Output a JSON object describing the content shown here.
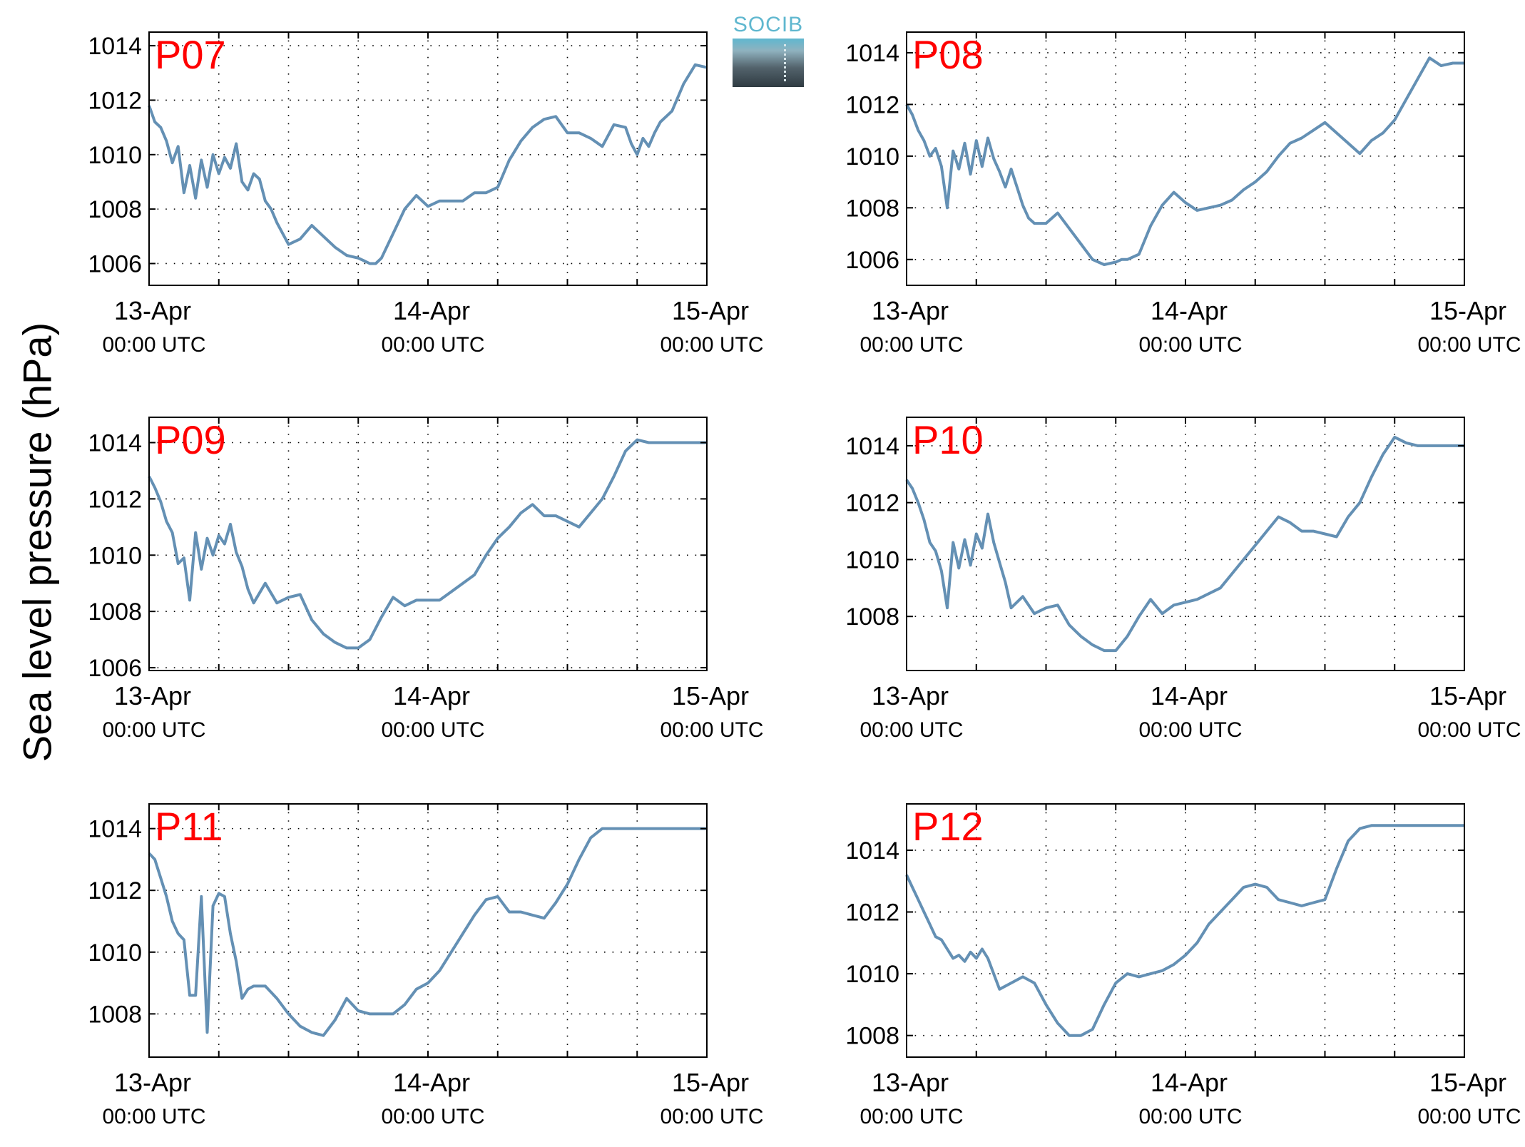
{
  "figure": {
    "ylabel": "Sea level pressure (hPa)",
    "logo_text": "SOCIB",
    "colors": {
      "line": "#6490b4",
      "panel_label": "#ff0000",
      "grid": "#000000"
    }
  },
  "chart_data": [
    {
      "type": "line",
      "title": "P07",
      "x_ticks": [
        "13-Apr",
        "14-Apr",
        "15-Apr"
      ],
      "x_subticks": [
        "00:00 UTC",
        "00:00 UTC",
        "00:00 UTC"
      ],
      "ylim": [
        1005.2,
        1014.5
      ],
      "yticks": [
        1006,
        1008,
        1010,
        1012,
        1014
      ],
      "grid": true,
      "series": [
        {
          "x": [
            0,
            0.5,
            1,
            1.5,
            2,
            2.5,
            3,
            3.5,
            4,
            4.5,
            5,
            5.5,
            6,
            6.5,
            7,
            7.5,
            8,
            8.5,
            9,
            9.5,
            10,
            10.5,
            11,
            12,
            13,
            14,
            15,
            16,
            17,
            18,
            18.5,
            19,
            19.5,
            20,
            21,
            22,
            23,
            24,
            25,
            26,
            27,
            28,
            29,
            30,
            31,
            32,
            33,
            34,
            35,
            36,
            37,
            38,
            39,
            40,
            41,
            41.5,
            42,
            42.5,
            43,
            43.5,
            44,
            45,
            46,
            47,
            48
          ],
          "y": [
            1011.8,
            1011.2,
            1011.0,
            1010.5,
            1009.7,
            1010.3,
            1008.6,
            1009.6,
            1008.4,
            1009.8,
            1008.8,
            1010.0,
            1009.3,
            1009.9,
            1009.5,
            1010.4,
            1009.0,
            1008.7,
            1009.3,
            1009.1,
            1008.3,
            1008.0,
            1007.5,
            1006.7,
            1006.9,
            1007.4,
            1007.0,
            1006.6,
            1006.3,
            1006.2,
            1006.1,
            1006.0,
            1006.0,
            1006.2,
            1007.1,
            1008.0,
            1008.5,
            1008.1,
            1008.3,
            1008.3,
            1008.3,
            1008.6,
            1008.6,
            1008.8,
            1009.8,
            1010.5,
            1011.0,
            1011.3,
            1011.4,
            1010.8,
            1010.8,
            1010.6,
            1010.3,
            1011.1,
            1011.0,
            1010.4,
            1010.0,
            1010.6,
            1010.3,
            1010.8,
            1011.2,
            1011.6,
            1012.6,
            1013.3,
            1013.2
          ]
        }
      ]
    },
    {
      "type": "line",
      "title": "P08",
      "x_ticks": [
        "13-Apr",
        "14-Apr",
        "15-Apr"
      ],
      "x_subticks": [
        "00:00 UTC",
        "00:00 UTC",
        "00:00 UTC"
      ],
      "ylim": [
        1005.0,
        1014.8
      ],
      "yticks": [
        1006,
        1008,
        1010,
        1012,
        1014
      ],
      "grid": true,
      "series": [
        {
          "x": [
            0,
            0.5,
            1,
            1.5,
            2,
            2.5,
            3,
            3.5,
            4,
            4.5,
            5,
            5.5,
            6,
            6.5,
            7,
            7.5,
            8,
            8.5,
            9,
            9.5,
            10,
            10.5,
            11,
            12,
            13,
            14,
            15,
            16,
            17,
            18,
            18.5,
            19,
            20,
            21,
            22,
            23,
            24,
            25,
            26,
            27,
            28,
            29,
            30,
            31,
            32,
            33,
            34,
            35,
            36,
            37,
            38,
            39,
            40,
            41,
            42,
            43,
            44,
            45,
            46,
            47,
            48
          ],
          "y": [
            1012.0,
            1011.6,
            1011.0,
            1010.6,
            1010.0,
            1010.3,
            1009.6,
            1008.0,
            1010.2,
            1009.5,
            1010.5,
            1009.3,
            1010.6,
            1009.6,
            1010.7,
            1009.9,
            1009.4,
            1008.8,
            1009.5,
            1008.8,
            1008.1,
            1007.6,
            1007.4,
            1007.4,
            1007.8,
            1007.2,
            1006.6,
            1006.0,
            1005.8,
            1005.9,
            1006.0,
            1006.0,
            1006.2,
            1007.3,
            1008.1,
            1008.6,
            1008.2,
            1007.9,
            1008.0,
            1008.1,
            1008.3,
            1008.7,
            1009.0,
            1009.4,
            1010.0,
            1010.5,
            1010.7,
            1011.0,
            1011.3,
            1010.9,
            1010.5,
            1010.1,
            1010.6,
            1010.9,
            1011.4,
            1012.2,
            1013.0,
            1013.8,
            1013.5,
            1013.6,
            1013.6
          ]
        }
      ]
    },
    {
      "type": "line",
      "title": "P09",
      "x_ticks": [
        "13-Apr",
        "14-Apr",
        "15-Apr"
      ],
      "x_subticks": [
        "00:00 UTC",
        "00:00 UTC",
        "00:00 UTC"
      ],
      "ylim": [
        1005.9,
        1014.9
      ],
      "yticks": [
        1006,
        1008,
        1010,
        1012,
        1014
      ],
      "grid": true,
      "series": [
        {
          "x": [
            0,
            0.5,
            1,
            1.5,
            2,
            2.5,
            3,
            3.5,
            4,
            4.5,
            5,
            5.5,
            6,
            6.5,
            7,
            7.5,
            8,
            8.5,
            9,
            10,
            11,
            12,
            13,
            14,
            15,
            16,
            17,
            18,
            19,
            20,
            21,
            22,
            23,
            24,
            25,
            26,
            27,
            28,
            29,
            30,
            31,
            32,
            33,
            34,
            35,
            36,
            37,
            38,
            39,
            40,
            41,
            42,
            43,
            44,
            45,
            46,
            47,
            48
          ],
          "y": [
            1012.8,
            1012.4,
            1011.9,
            1011.2,
            1010.8,
            1009.7,
            1009.9,
            1008.4,
            1010.8,
            1009.5,
            1010.6,
            1010.0,
            1010.7,
            1010.4,
            1011.1,
            1010.1,
            1009.6,
            1008.8,
            1008.3,
            1009.0,
            1008.3,
            1008.5,
            1008.6,
            1007.7,
            1007.2,
            1006.9,
            1006.7,
            1006.7,
            1007.0,
            1007.8,
            1008.5,
            1008.2,
            1008.4,
            1008.4,
            1008.4,
            1008.7,
            1009.0,
            1009.3,
            1010.0,
            1010.6,
            1011.0,
            1011.5,
            1011.8,
            1011.4,
            1011.4,
            1011.2,
            1011.0,
            1011.5,
            1012.0,
            1012.8,
            1013.7,
            1014.1,
            1014.0,
            1014.0,
            1014.0,
            1014.0,
            1014.0,
            1014.0
          ]
        }
      ]
    },
    {
      "type": "line",
      "title": "P10",
      "x_ticks": [
        "13-Apr",
        "14-Apr",
        "15-Apr"
      ],
      "x_subticks": [
        "00:00 UTC",
        "00:00 UTC",
        "00:00 UTC"
      ],
      "ylim": [
        1006.1,
        1015.0
      ],
      "yticks": [
        1008,
        1010,
        1012,
        1014
      ],
      "grid": true,
      "series": [
        {
          "x": [
            0,
            0.5,
            1,
            1.5,
            2,
            2.5,
            3,
            3.5,
            4,
            4.5,
            5,
            5.5,
            6,
            6.5,
            7,
            7.5,
            8,
            8.5,
            9,
            10,
            11,
            12,
            13,
            14,
            15,
            16,
            17,
            18,
            19,
            20,
            21,
            22,
            23,
            24,
            25,
            26,
            27,
            28,
            29,
            30,
            31,
            32,
            33,
            34,
            35,
            36,
            37,
            38,
            39,
            40,
            41,
            42,
            43,
            44,
            45,
            46,
            47,
            48
          ],
          "y": [
            1012.8,
            1012.5,
            1012.0,
            1011.4,
            1010.6,
            1010.3,
            1009.6,
            1008.3,
            1010.6,
            1009.7,
            1010.7,
            1009.8,
            1010.9,
            1010.4,
            1011.6,
            1010.6,
            1009.9,
            1009.2,
            1008.3,
            1008.7,
            1008.1,
            1008.3,
            1008.4,
            1007.7,
            1007.3,
            1007.0,
            1006.8,
            1006.8,
            1007.3,
            1008.0,
            1008.6,
            1008.1,
            1008.4,
            1008.5,
            1008.6,
            1008.8,
            1009.0,
            1009.5,
            1010.0,
            1010.5,
            1011.0,
            1011.5,
            1011.3,
            1011.0,
            1011.0,
            1010.9,
            1010.8,
            1011.5,
            1012.0,
            1012.9,
            1013.7,
            1014.3,
            1014.1,
            1014.0,
            1014.0,
            1014.0,
            1014.0,
            1014.0
          ]
        }
      ]
    },
    {
      "type": "line",
      "title": "P11",
      "x_ticks": [
        "13-Apr",
        "14-Apr",
        "15-Apr"
      ],
      "x_subticks": [
        "00:00 UTC",
        "00:00 UTC",
        "00:00 UTC"
      ],
      "ylim": [
        1006.6,
        1014.8
      ],
      "yticks": [
        1008,
        1010,
        1012,
        1014
      ],
      "grid": true,
      "series": [
        {
          "x": [
            0,
            0.5,
            1,
            1.5,
            2,
            2.5,
            3,
            3.5,
            4,
            4.5,
            5,
            5.5,
            6,
            6.5,
            7,
            7.5,
            8,
            8.5,
            9,
            9.5,
            10,
            11,
            12,
            13,
            14,
            15,
            16,
            17,
            18,
            19,
            20,
            21,
            22,
            23,
            24,
            25,
            26,
            27,
            28,
            29,
            30,
            31,
            32,
            33,
            34,
            35,
            36,
            37,
            38,
            39,
            40,
            41,
            42,
            43,
            44,
            45,
            46,
            47,
            48
          ],
          "y": [
            1013.2,
            1013.0,
            1012.4,
            1011.8,
            1011.0,
            1010.6,
            1010.4,
            1008.6,
            1008.6,
            1011.8,
            1007.4,
            1011.5,
            1011.9,
            1011.8,
            1010.6,
            1009.7,
            1008.5,
            1008.8,
            1008.9,
            1008.9,
            1008.9,
            1008.5,
            1008.0,
            1007.6,
            1007.4,
            1007.3,
            1007.8,
            1008.5,
            1008.1,
            1008.0,
            1008.0,
            1008.0,
            1008.3,
            1008.8,
            1009.0,
            1009.4,
            1010.0,
            1010.6,
            1011.2,
            1011.7,
            1011.8,
            1011.3,
            1011.3,
            1011.2,
            1011.1,
            1011.6,
            1012.2,
            1013.0,
            1013.7,
            1014.0,
            1014.0,
            1014.0,
            1014.0,
            1014.0,
            1014.0,
            1014.0,
            1014.0,
            1014.0,
            1014.0
          ]
        }
      ]
    },
    {
      "type": "line",
      "title": "P12",
      "x_ticks": [
        "13-Apr",
        "14-Apr",
        "15-Apr"
      ],
      "x_subticks": [
        "00:00 UTC",
        "00:00 UTC",
        "00:00 UTC"
      ],
      "ylim": [
        1007.3,
        1015.5
      ],
      "yticks": [
        1008,
        1010,
        1012,
        1014
      ],
      "grid": true,
      "series": [
        {
          "x": [
            0,
            0.5,
            1,
            1.5,
            2,
            2.5,
            3,
            3.5,
            4,
            4.5,
            5,
            5.5,
            6,
            6.5,
            7,
            8,
            9,
            10,
            11,
            12,
            13,
            14,
            15,
            16,
            17,
            18,
            19,
            20,
            21,
            22,
            23,
            24,
            25,
            26,
            27,
            28,
            29,
            30,
            31,
            32,
            33,
            34,
            35,
            36,
            37,
            38,
            39,
            40,
            41,
            42,
            43,
            44,
            45,
            46,
            47,
            48
          ],
          "y": [
            1013.2,
            1012.8,
            1012.4,
            1012.0,
            1011.6,
            1011.2,
            1011.1,
            1010.8,
            1010.5,
            1010.6,
            1010.4,
            1010.7,
            1010.5,
            1010.8,
            1010.5,
            1009.5,
            1009.7,
            1009.9,
            1009.7,
            1009.0,
            1008.4,
            1008.0,
            1008.0,
            1008.2,
            1009.0,
            1009.7,
            1010.0,
            1009.9,
            1010.0,
            1010.1,
            1010.3,
            1010.6,
            1011.0,
            1011.6,
            1012.0,
            1012.4,
            1012.8,
            1012.9,
            1012.8,
            1012.4,
            1012.3,
            1012.2,
            1012.3,
            1012.4,
            1013.4,
            1014.3,
            1014.7,
            1014.8,
            1014.8,
            1014.8,
            1014.8,
            1014.8,
            1014.8,
            1014.8,
            1014.8,
            1014.8
          ]
        }
      ]
    }
  ]
}
